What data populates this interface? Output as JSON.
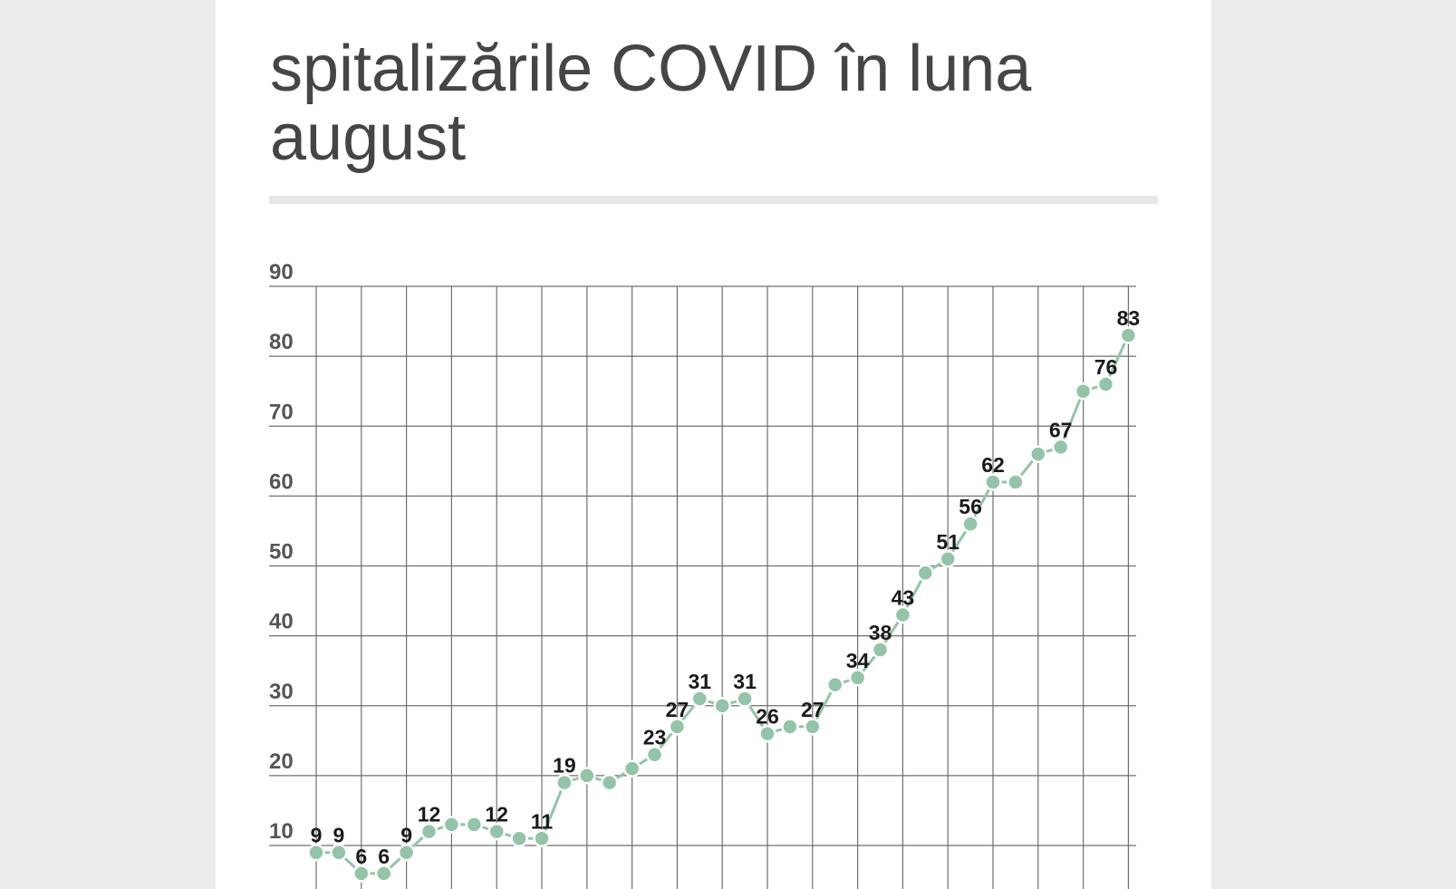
{
  "title": "spitalizările COVID în luna august",
  "chart_data": {
    "type": "line",
    "title": "spitalizările COVID în luna august",
    "xlabel": "",
    "ylabel": "",
    "ylim": [
      0,
      90
    ],
    "yticks": [
      10,
      20,
      30,
      40,
      50,
      60,
      70,
      80,
      90
    ],
    "grid": true,
    "color": "#93c4a8",
    "series": [
      {
        "values": [
          9,
          9,
          6,
          6,
          9,
          12,
          13,
          13,
          12,
          11,
          11,
          19,
          20,
          19,
          21,
          23,
          27,
          31,
          30,
          31,
          26,
          27,
          27,
          33,
          34,
          38,
          43,
          49,
          51,
          56,
          62,
          62,
          66,
          67,
          75,
          76,
          83
        ],
        "labels": [
          "9",
          "9",
          "6",
          "6",
          "9",
          "12",
          "",
          "",
          "12",
          "",
          "11",
          "19",
          "",
          "",
          "",
          "23",
          "27",
          "31",
          "",
          "31",
          "26",
          "",
          "27",
          "",
          "34",
          "38",
          "43",
          "",
          "51",
          "56",
          "62",
          "",
          "",
          "67",
          "",
          "76",
          "83"
        ]
      }
    ]
  }
}
